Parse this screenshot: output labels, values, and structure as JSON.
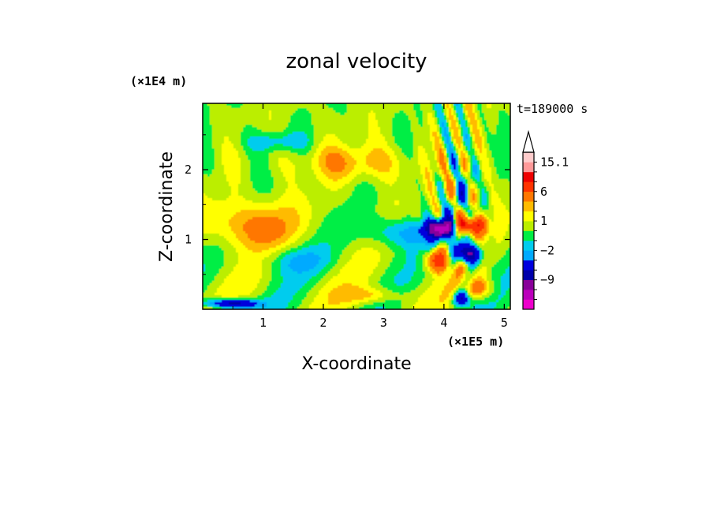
{
  "chart_data": {
    "type": "heatmap",
    "title": "zonal velocity",
    "xlabel": "X-coordinate",
    "ylabel": "Z-coordinate",
    "x_multiplier": "(×1E5 m)",
    "y_multiplier": "(×1E4 m)",
    "time_label": "t=189000 s",
    "xlim": [
      0,
      5.1
    ],
    "ylim": [
      0,
      2.95
    ],
    "xticks": [
      1,
      2,
      3,
      4,
      5
    ],
    "yticks": [
      1,
      2
    ],
    "colorbar": {
      "levels": [
        -15,
        -12,
        -9,
        -6,
        -3,
        -2,
        -1,
        0,
        1,
        2,
        3,
        6,
        9,
        12,
        15.1
      ],
      "colors": [
        "#ee00cc",
        "#bb00bb",
        "#880099",
        "#0000aa",
        "#0000dd",
        "#00aaff",
        "#00ccee",
        "#00ee44",
        "#bbee00",
        "#ffff00",
        "#ffbb00",
        "#ff7700",
        "#ff3300",
        "#ee0000",
        "#ff9999",
        "#ffcccc"
      ],
      "tick_labels": [
        "-9",
        "-2",
        "1",
        "6",
        "15.1"
      ]
    },
    "field_features": [
      {
        "x": 3.95,
        "z": 1.15,
        "u": -10
      },
      {
        "x": 4.4,
        "z": 1.2,
        "u": 8
      },
      {
        "x": 4.4,
        "z": 0.8,
        "u": -9
      },
      {
        "x": 0.5,
        "z": 0.15,
        "u": -8
      },
      {
        "x": 0.8,
        "z": 1.2,
        "u": 3
      },
      {
        "x": 3.3,
        "z": 1.1,
        "u": -2
      },
      {
        "x": 1.2,
        "z": 2.4,
        "u": -1.5
      },
      {
        "x": 2.4,
        "z": 2.0,
        "u": 2
      }
    ]
  }
}
